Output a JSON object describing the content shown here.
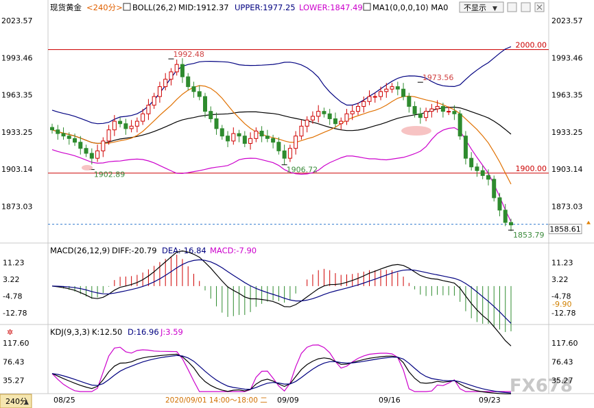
{
  "header": {
    "symbol": "现货黄金",
    "period": "<240分>",
    "boll_label": "BOLL(26,2)",
    "mid": "MID:1912.37",
    "upper": "UPPER:1977.25",
    "lower": "LOWER:1847.49",
    "ma": "MA1(0,0,0,10) MA0",
    "toggle_label": "不显示",
    "toggle_arrow": "▼"
  },
  "price_panel": {
    "ticks": [
      "2023.57",
      "1993.46",
      "1963.35",
      "1933.25",
      "1903.14",
      "1873.03"
    ],
    "current_price": "1858.61",
    "hline_2000": "2000.00",
    "hline_1900": "1900.00",
    "annot_high1": "1992.48",
    "annot_low1": "1902.89",
    "annot_low2": "1906.72",
    "annot_high2": "1973.56",
    "annot_low3": "1853.79"
  },
  "macd_panel": {
    "title": "MACD(26,12,9)",
    "diff": "DIFF:-20.79",
    "dea": "DEA:-16.84",
    "macd": "MACD:-7.90",
    "ticks": [
      "11.23",
      "3.22",
      "-4.78",
      "-12.78"
    ],
    "current_label": "-9.90"
  },
  "kdj_panel": {
    "title": "KDJ(9,3,3)",
    "k": "K:12.50",
    "d": "D:16.96",
    "j": "J:3.59",
    "ticks": [
      "117.60",
      "76.43",
      "35.27"
    ]
  },
  "bottom_axis": {
    "period_button": "240分",
    "labels": [
      "08/25",
      "2020/09/01 14:00～18:00 二",
      "09/09",
      "09/16",
      "09/23"
    ]
  },
  "watermark": "FX678",
  "colors": {
    "boll_mid": "#000000",
    "boll_upper": "#000080",
    "boll_lower": "#cc00cc",
    "ma_line": "#e07000",
    "up_candle": "#d00000",
    "down_candle": "#2e8b2e",
    "hline": "#cc0000"
  },
  "chart_data": {
    "type": "candlestick",
    "price_axis": {
      "min": 1845,
      "max": 2028
    },
    "bars": 82,
    "close_series": [
      1935,
      1932,
      1930,
      1928,
      1925,
      1920,
      1916,
      1912,
      1918,
      1926,
      1935,
      1942,
      1940,
      1936,
      1938,
      1942,
      1948,
      1955,
      1962,
      1970,
      1976,
      1982,
      1988,
      1978,
      1970,
      1966,
      1962,
      1950,
      1944,
      1936,
      1930,
      1926,
      1932,
      1930,
      1924,
      1928,
      1934,
      1930,
      1928,
      1925,
      1918,
      1912,
      1920,
      1930,
      1938,
      1943,
      1946,
      1950,
      1948,
      1944,
      1940,
      1942,
      1948,
      1950,
      1954,
      1958,
      1962,
      1962,
      1966,
      1968,
      1970,
      1968,
      1962,
      1954,
      1948,
      1945,
      1950,
      1952,
      1954,
      1950,
      1950,
      1948,
      1930,
      1912,
      1905,
      1902,
      1898,
      1895,
      1880,
      1870,
      1860,
      1858
    ],
    "hlines": [
      2000,
      1900
    ],
    "annotations": [
      {
        "label": "1992.48",
        "bar": 21,
        "value": 1992.48
      },
      {
        "label": "1902.89",
        "bar": 7,
        "value": 1902.89
      },
      {
        "label": "1906.72",
        "bar": 41,
        "value": 1906.72
      },
      {
        "label": "1973.56",
        "bar": 65,
        "value": 1973.56
      },
      {
        "label": "1853.79",
        "bar": 81,
        "value": 1853.79
      }
    ],
    "boll": {
      "mid": 1912.37,
      "upper": 1977.25,
      "lower": 1847.49
    },
    "macd": {
      "diff": -20.79,
      "dea": -16.84,
      "macd": -7.9,
      "axis": {
        "min": -17,
        "max": 14
      }
    },
    "kdj": {
      "k": 12.5,
      "d": 16.96,
      "j": 3.59,
      "axis": {
        "min": 10,
        "max": 130
      }
    },
    "x_labels": [
      "08/25",
      "09/09",
      "09/16",
      "09/23"
    ]
  }
}
